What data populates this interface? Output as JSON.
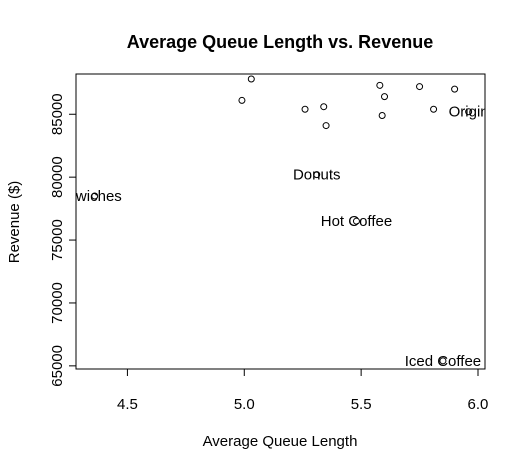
{
  "chart_data": {
    "type": "scatter",
    "title": "Average Queue Length vs. Revenue",
    "xlabel": "Average Queue Length",
    "ylabel": "Revenue ($)",
    "xlim": [
      4.28,
      6.03
    ],
    "ylim": [
      64750,
      88200
    ],
    "xticks": [
      "4.5",
      "5.0",
      "5.5",
      "6.0"
    ],
    "yticks": [
      "65000",
      "70000",
      "75000",
      "80000",
      "85000"
    ],
    "grid": false,
    "points": [
      {
        "x": 4.36,
        "y": 78500
      },
      {
        "x": 4.99,
        "y": 86100
      },
      {
        "x": 5.03,
        "y": 87800
      },
      {
        "x": 5.26,
        "y": 85400
      },
      {
        "x": 5.31,
        "y": 80200
      },
      {
        "x": 5.34,
        "y": 85600
      },
      {
        "x": 5.35,
        "y": 84100
      },
      {
        "x": 5.48,
        "y": 76500
      },
      {
        "x": 5.58,
        "y": 87300
      },
      {
        "x": 5.59,
        "y": 84900
      },
      {
        "x": 5.6,
        "y": 86400
      },
      {
        "x": 5.75,
        "y": 87200
      },
      {
        "x": 5.81,
        "y": 85400
      },
      {
        "x": 5.85,
        "y": 65400
      },
      {
        "x": 5.9,
        "y": 87000
      },
      {
        "x": 5.96,
        "y": 85200
      }
    ],
    "annotations": [
      {
        "text": "dwiches",
        "x": 4.36,
        "y": 78500
      },
      {
        "text": "Donuts",
        "x": 5.31,
        "y": 80200
      },
      {
        "text": "Hot Coffee",
        "x": 5.48,
        "y": 76500
      },
      {
        "text": "Origin",
        "x": 5.96,
        "y": 85200
      },
      {
        "text": "Iced Coffee",
        "x": 5.85,
        "y": 65400
      }
    ]
  }
}
